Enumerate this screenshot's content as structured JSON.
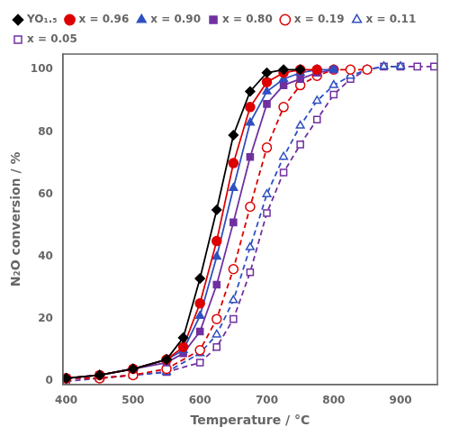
{
  "chart_data": {
    "type": "line",
    "xlabel": "Temperature / °C",
    "ylabel": "N₂O conversion / %",
    "xlim": [
      395,
      955
    ],
    "ylim": [
      -1,
      105
    ],
    "xticks": [
      400,
      500,
      600,
      700,
      800,
      900
    ],
    "yticks": [
      0,
      20,
      40,
      60,
      80,
      100
    ],
    "grid": false,
    "legend": "upper left",
    "series": [
      {
        "name": "YO₁.₅",
        "color": "black",
        "line_style": "solid",
        "marker": "diamond",
        "x": [
          400,
          450,
          500,
          550,
          575,
          600,
          625,
          650,
          675,
          700,
          725,
          750
        ],
        "values": [
          1,
          2,
          4,
          7,
          14,
          33,
          55,
          79,
          93,
          99,
          100,
          100
        ]
      },
      {
        "name": "x = 0.96",
        "color": "#dd0000",
        "line_style": "solid",
        "marker": "circle",
        "x": [
          400,
          450,
          500,
          550,
          575,
          600,
          625,
          650,
          675,
          700,
          725,
          750,
          775
        ],
        "values": [
          1,
          2,
          4,
          7,
          11,
          25,
          45,
          70,
          88,
          96,
          99,
          100,
          100
        ]
      },
      {
        "name": "x = 0.90",
        "color": "#3050c0",
        "line_style": "solid",
        "marker": "triangle",
        "x": [
          400,
          450,
          500,
          550,
          575,
          600,
          625,
          650,
          675,
          700,
          725,
          750,
          775,
          800
        ],
        "values": [
          1,
          2,
          4,
          7,
          10,
          21,
          40,
          62,
          83,
          93,
          97,
          99,
          100,
          100
        ]
      },
      {
        "name": "x = 0.80",
        "color": "#7030a0",
        "line_style": "solid",
        "marker": "square",
        "x": [
          400,
          450,
          500,
          550,
          575,
          600,
          625,
          650,
          675,
          700,
          725,
          750,
          775,
          800
        ],
        "values": [
          1,
          2,
          4,
          6,
          9,
          16,
          31,
          51,
          72,
          89,
          95,
          97,
          99,
          100
        ]
      },
      {
        "name": "x = 0.19",
        "color": "#dd0000",
        "line_style": "dashed",
        "marker": "open_circle",
        "x": [
          400,
          450,
          500,
          550,
          600,
          625,
          650,
          675,
          700,
          725,
          750,
          775,
          800,
          825,
          850
        ],
        "values": [
          1,
          1,
          2,
          4,
          10,
          20,
          36,
          56,
          75,
          88,
          95,
          98,
          100,
          100,
          100
        ]
      },
      {
        "name": "x = 0.11",
        "color": "#3050c0",
        "line_style": "dashed",
        "marker": "open_triangle",
        "x": [
          400,
          450,
          500,
          550,
          600,
          625,
          650,
          675,
          700,
          725,
          750,
          775,
          800,
          825,
          850,
          875,
          900
        ],
        "values": [
          1,
          1,
          2,
          3,
          9,
          15,
          26,
          43,
          60,
          72,
          82,
          90,
          95,
          98,
          100,
          101,
          101
        ]
      },
      {
        "name": "x = 0.05",
        "color": "#7030a0",
        "line_style": "dashed",
        "marker": "open_square",
        "x": [
          400,
          450,
          500,
          550,
          600,
          625,
          650,
          675,
          700,
          725,
          750,
          775,
          800,
          825,
          850,
          875,
          900,
          925,
          950
        ],
        "values": [
          0,
          1,
          2,
          3,
          6,
          11,
          20,
          35,
          54,
          67,
          76,
          84,
          92,
          97,
          100,
          101,
          101,
          101,
          101
        ]
      }
    ]
  }
}
